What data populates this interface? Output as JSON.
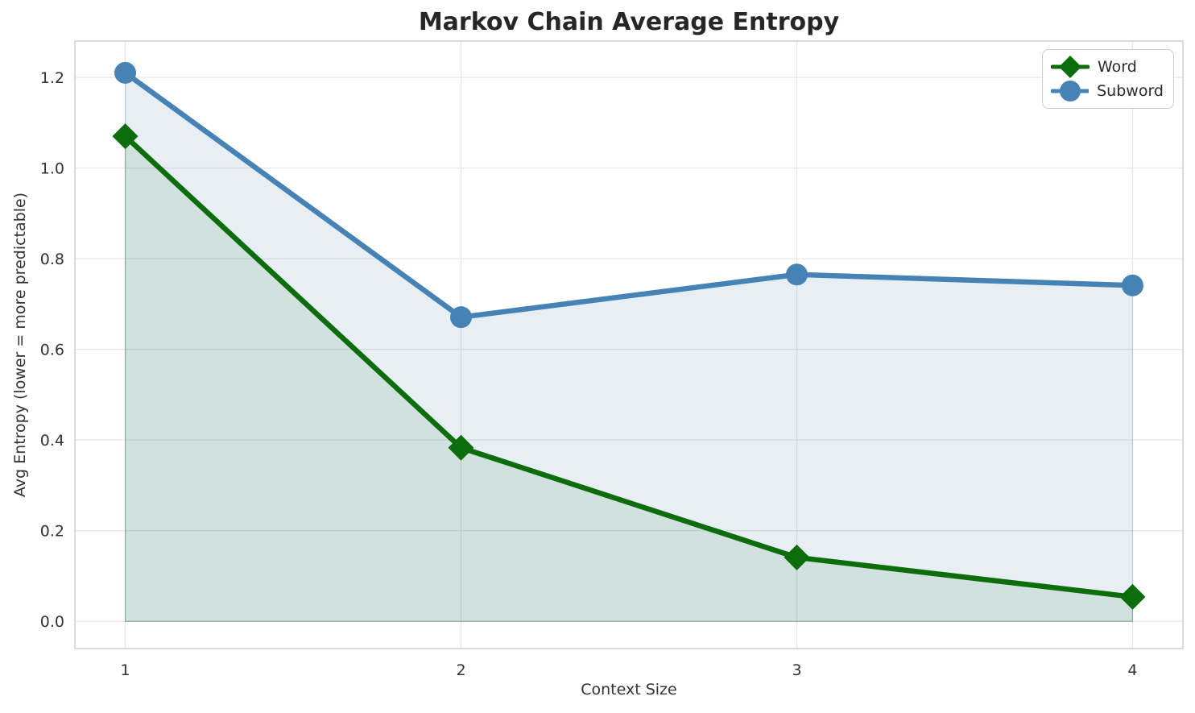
{
  "chart_data": {
    "type": "line",
    "title": "Markov Chain Average Entropy",
    "xlabel": "Context Size",
    "ylabel": "Avg Entropy (lower = more predictable)",
    "x": [
      1,
      2,
      3,
      4
    ],
    "xtick_labels": [
      "1",
      "2",
      "3",
      "4"
    ],
    "ytick_values": [
      0.0,
      0.2,
      0.4,
      0.6,
      0.8,
      1.0,
      1.2
    ],
    "ytick_labels": [
      "0.0",
      "0.2",
      "0.4",
      "0.6",
      "0.8",
      "1.0",
      "1.2"
    ],
    "xlim": [
      0.85,
      4.15
    ],
    "ylim": [
      -0.06,
      1.28
    ],
    "grid": true,
    "legend_position": "upper right",
    "fill_baseline": 0.0,
    "series": [
      {
        "name": "Word",
        "marker": "diamond",
        "color": "#0d6d0d",
        "fill": "rgba(18,105,18,0.10)",
        "edge": "rgba(18,105,18,0.25)",
        "values": [
          1.07,
          0.383,
          0.141,
          0.054
        ]
      },
      {
        "name": "Subword",
        "marker": "circle",
        "color": "#4682b4",
        "fill": "rgba(70,130,180,0.13)",
        "edge": "rgba(70,130,180,0.25)",
        "values": [
          1.21,
          0.671,
          0.765,
          0.741
        ]
      }
    ]
  },
  "style_colors": {
    "grid": "#e8e8e8",
    "spine": "#cfcfcf",
    "tick_text": "#333333"
  }
}
